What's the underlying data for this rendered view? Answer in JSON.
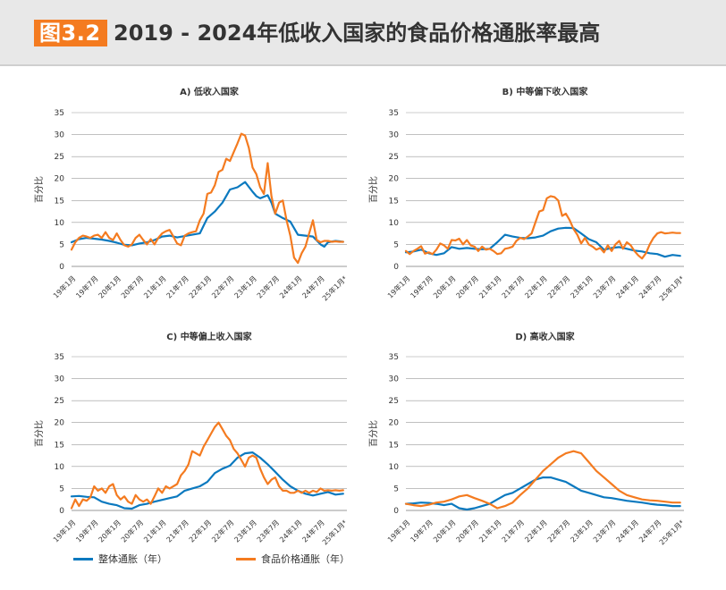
{
  "figure": {
    "label": "图3.2",
    "title": "2019 - 2024年低收入国家的食品价格通胀率最高"
  },
  "colors": {
    "headline": "#0b79bf",
    "food": "#f47b20",
    "grid": "#9a9a9a",
    "text": "#333333"
  },
  "legend": {
    "headline": "整体通胀（年）",
    "food": "食品价格通胀（年）"
  },
  "chart_data": [
    {
      "type": "line",
      "title": "A) 低收入国家",
      "ylabel": "百分比",
      "ylim": [
        0,
        35
      ],
      "yticks": [
        0,
        5,
        10,
        15,
        20,
        25,
        30,
        35
      ],
      "x_ticklabels": [
        "19年1月",
        "19年7月",
        "20年1月",
        "20年7月",
        "21年1月",
        "21年7月",
        "22年1月",
        "22年7月",
        "23年1月",
        "23年7月",
        "24年1月",
        "24年7月",
        "25年1月*"
      ],
      "x_range_months": [
        0,
        73
      ],
      "series": [
        {
          "name": "整体通胀（年）",
          "x": [
            0,
            2,
            4,
            6,
            8,
            10,
            12,
            14,
            16,
            18,
            20,
            22,
            24,
            26,
            28,
            30,
            32,
            34,
            36,
            38,
            39,
            40,
            42,
            44,
            46,
            48,
            49,
            50,
            52,
            53,
            54,
            56,
            58,
            60,
            62,
            64,
            66,
            67,
            68,
            70,
            72
          ],
          "y": [
            5.5,
            6.2,
            6.5,
            6.3,
            6.1,
            5.8,
            5.4,
            4.9,
            4.8,
            5.2,
            5.5,
            6.0,
            6.8,
            7.0,
            6.6,
            6.9,
            7.2,
            7.5,
            11.0,
            12.5,
            13.5,
            14.5,
            17.5,
            18.0,
            19.2,
            17.0,
            16.0,
            15.5,
            16.2,
            14.5,
            12.0,
            11.0,
            10.2,
            7.2,
            7.0,
            6.8,
            5.0,
            4.5,
            5.5,
            5.8,
            5.6
          ]
        },
        {
          "name": "食品价格通胀（年）",
          "x": [
            0,
            1,
            2,
            3,
            4,
            5,
            6,
            7,
            8,
            9,
            10,
            11,
            12,
            13,
            14,
            15,
            16,
            17,
            18,
            19,
            20,
            21,
            22,
            23,
            24,
            25,
            26,
            27,
            28,
            29,
            30,
            31,
            32,
            33,
            34,
            35,
            36,
            37,
            38,
            39,
            40,
            41,
            42,
            43,
            44,
            45,
            46,
            47,
            48,
            49,
            50,
            51,
            52,
            53,
            54,
            55,
            56,
            57,
            58,
            59,
            60,
            61,
            62,
            63,
            64,
            65,
            66,
            67,
            68,
            69,
            70,
            71,
            72
          ],
          "y": [
            3.8,
            5.5,
            6.5,
            7.0,
            6.8,
            6.5,
            7.0,
            7.2,
            6.5,
            7.8,
            6.5,
            6.0,
            7.5,
            6.0,
            4.8,
            4.5,
            5.0,
            6.5,
            7.2,
            6.0,
            5.0,
            6.2,
            5.0,
            6.5,
            7.5,
            8.0,
            8.3,
            6.8,
            5.2,
            4.8,
            7.0,
            7.5,
            7.8,
            8.0,
            10.5,
            12.0,
            16.5,
            16.8,
            18.5,
            21.5,
            22.0,
            24.5,
            24.0,
            26.0,
            28.0,
            30.2,
            29.8,
            27.0,
            22.5,
            21.0,
            18.0,
            16.5,
            23.5,
            16.0,
            12.0,
            14.5,
            15.0,
            10.5,
            7.0,
            2.0,
            0.8,
            3.0,
            4.5,
            7.5,
            10.5,
            6.0,
            5.5,
            5.8,
            5.8,
            5.6,
            5.7,
            5.6,
            5.6
          ]
        }
      ]
    },
    {
      "type": "line",
      "title": "B) 中等偏下收入国家",
      "ylabel": "百分比",
      "ylim": [
        0,
        35
      ],
      "yticks": [
        0,
        5,
        10,
        15,
        20,
        25,
        30,
        35
      ],
      "x_ticklabels": [
        "19年1月",
        "19年7月",
        "20年1月",
        "20年7月",
        "21年1月",
        "21年7月",
        "22年1月",
        "22年7月",
        "23年1月",
        "23年7月",
        "24年1月",
        "24年7月",
        "25年1月*"
      ],
      "x_range_months": [
        0,
        73
      ],
      "series": [
        {
          "name": "整体通胀（年）",
          "x": [
            0,
            2,
            4,
            6,
            8,
            10,
            12,
            14,
            16,
            18,
            20,
            22,
            24,
            26,
            28,
            30,
            32,
            34,
            36,
            38,
            40,
            42,
            44,
            46,
            48,
            50,
            52,
            54,
            56,
            58,
            60,
            62,
            64,
            66,
            68,
            70,
            72
          ],
          "y": [
            3.2,
            3.4,
            3.8,
            3.0,
            2.6,
            3.0,
            4.4,
            4.0,
            4.2,
            4.0,
            3.9,
            4.0,
            5.5,
            7.2,
            6.8,
            6.5,
            6.4,
            6.6,
            7.0,
            8.0,
            8.6,
            8.8,
            8.7,
            7.5,
            6.2,
            5.5,
            3.8,
            4.2,
            4.4,
            4.0,
            3.6,
            3.4,
            3.0,
            2.8,
            2.2,
            2.6,
            2.4
          ]
        },
        {
          "name": "食品价格通胀（年）",
          "x": [
            0,
            1,
            2,
            3,
            4,
            5,
            6,
            7,
            8,
            9,
            10,
            11,
            12,
            13,
            14,
            15,
            16,
            17,
            18,
            19,
            20,
            21,
            22,
            23,
            24,
            25,
            26,
            27,
            28,
            29,
            30,
            31,
            32,
            33,
            34,
            35,
            36,
            37,
            38,
            39,
            40,
            41,
            42,
            43,
            44,
            45,
            46,
            47,
            48,
            49,
            50,
            51,
            52,
            53,
            54,
            55,
            56,
            57,
            58,
            59,
            60,
            61,
            62,
            63,
            64,
            65,
            66,
            67,
            68,
            69,
            70,
            71,
            72
          ],
          "y": [
            3.5,
            2.8,
            3.5,
            4.0,
            4.6,
            2.9,
            3.2,
            2.8,
            3.8,
            5.2,
            4.8,
            4.0,
            6.0,
            5.9,
            6.3,
            5.0,
            6.0,
            4.8,
            4.5,
            3.5,
            4.5,
            3.8,
            4.0,
            3.5,
            2.8,
            3.0,
            4.0,
            4.2,
            4.5,
            5.8,
            6.5,
            6.2,
            6.8,
            7.5,
            10.0,
            12.5,
            12.8,
            15.5,
            16.0,
            15.8,
            15.0,
            11.5,
            12.0,
            10.5,
            8.5,
            7.2,
            5.2,
            6.5,
            5.0,
            4.5,
            3.8,
            4.2,
            3.2,
            4.8,
            3.5,
            5.0,
            5.8,
            4.0,
            5.5,
            4.8,
            3.5,
            2.5,
            1.8,
            3.0,
            5.0,
            6.5,
            7.5,
            7.8,
            7.5,
            7.6,
            7.7,
            7.6,
            7.6
          ]
        }
      ]
    },
    {
      "type": "line",
      "title": "C) 中等偏上收入国家",
      "ylabel": "百分比",
      "ylim": [
        0,
        35
      ],
      "yticks": [
        0,
        5,
        10,
        15,
        20,
        25,
        30,
        35
      ],
      "x_ticklabels": [
        "19年1月",
        "19年7月",
        "20年1月",
        "20年7月",
        "21年1月",
        "21年7月",
        "22年1月",
        "22年7月",
        "23年1月",
        "23年7月",
        "24年1月",
        "24年7月",
        "25年1月*"
      ],
      "x_range_months": [
        0,
        73
      ],
      "series": [
        {
          "name": "整体通胀（年）",
          "x": [
            0,
            2,
            4,
            6,
            8,
            10,
            12,
            14,
            16,
            18,
            20,
            22,
            24,
            26,
            28,
            30,
            32,
            34,
            36,
            38,
            40,
            42,
            44,
            46,
            48,
            50,
            52,
            54,
            56,
            58,
            60,
            62,
            64,
            66,
            68,
            70,
            72
          ],
          "y": [
            3.2,
            3.3,
            3.1,
            3.0,
            2.0,
            1.5,
            1.2,
            0.5,
            0.4,
            1.2,
            1.5,
            2.0,
            2.4,
            2.8,
            3.2,
            4.5,
            5.0,
            5.5,
            6.5,
            8.5,
            9.5,
            10.2,
            12.0,
            13.0,
            13.2,
            12.0,
            10.5,
            8.8,
            7.0,
            5.5,
            4.5,
            3.8,
            3.4,
            3.8,
            4.2,
            3.6,
            3.8
          ]
        },
        {
          "name": "食品价格通胀（年）",
          "x": [
            0,
            1,
            2,
            3,
            4,
            5,
            6,
            7,
            8,
            9,
            10,
            11,
            12,
            13,
            14,
            15,
            16,
            17,
            18,
            19,
            20,
            21,
            22,
            23,
            24,
            25,
            26,
            27,
            28,
            29,
            30,
            31,
            32,
            33,
            34,
            35,
            36,
            37,
            38,
            39,
            40,
            41,
            42,
            43,
            44,
            45,
            46,
            47,
            48,
            49,
            50,
            51,
            52,
            53,
            54,
            55,
            56,
            57,
            58,
            59,
            60,
            61,
            62,
            63,
            64,
            65,
            66,
            67,
            68,
            69,
            70,
            71,
            72
          ],
          "y": [
            0.5,
            2.5,
            1.0,
            2.5,
            2.2,
            3.0,
            5.5,
            4.5,
            5.0,
            4.0,
            5.5,
            6.0,
            3.5,
            2.5,
            3.2,
            2.0,
            1.5,
            3.5,
            2.5,
            2.0,
            2.5,
            1.5,
            3.2,
            5.0,
            4.0,
            5.5,
            5.0,
            5.5,
            6.0,
            8.0,
            9.0,
            10.5,
            13.5,
            13.0,
            12.5,
            14.5,
            16.0,
            17.5,
            19.0,
            20.0,
            18.5,
            17.0,
            16.0,
            14.0,
            13.0,
            11.5,
            10.0,
            12.0,
            12.5,
            12.0,
            9.5,
            7.5,
            6.0,
            7.0,
            7.5,
            5.5,
            4.5,
            4.5,
            4.0,
            4.0,
            4.5,
            4.0,
            4.5,
            4.0,
            4.5,
            4.2,
            5.0,
            4.5,
            4.6,
            4.5,
            4.6,
            4.5,
            4.6
          ]
        }
      ]
    },
    {
      "type": "line",
      "title": "D) 高收入国家",
      "ylabel": "百分比",
      "ylim": [
        0,
        35
      ],
      "yticks": [
        0,
        5,
        10,
        15,
        20,
        25,
        30,
        35
      ],
      "x_ticklabels": [
        "19年1月",
        "19年7月",
        "20年1月",
        "20年7月",
        "21年1月",
        "21年7月",
        "22年1月",
        "22年7月",
        "23年1月",
        "23年7月",
        "24年1月",
        "24年7月",
        "25年1月*"
      ],
      "x_range_months": [
        0,
        73
      ],
      "series": [
        {
          "name": "整体通胀（年）",
          "x": [
            0,
            2,
            4,
            6,
            8,
            10,
            12,
            14,
            16,
            18,
            20,
            22,
            24,
            26,
            28,
            30,
            32,
            34,
            36,
            38,
            40,
            42,
            44,
            46,
            48,
            50,
            52,
            54,
            56,
            58,
            60,
            62,
            64,
            66,
            68,
            70,
            72
          ],
          "y": [
            1.5,
            1.6,
            1.8,
            1.7,
            1.5,
            1.2,
            1.5,
            0.5,
            0.2,
            0.5,
            1.0,
            1.5,
            2.5,
            3.5,
            4.0,
            5.0,
            6.0,
            7.0,
            7.5,
            7.5,
            7.0,
            6.5,
            5.5,
            4.5,
            4.0,
            3.5,
            3.0,
            2.8,
            2.5,
            2.2,
            2.0,
            1.8,
            1.5,
            1.3,
            1.2,
            1.0,
            1.0
          ]
        },
        {
          "name": "食品价格通胀（年）",
          "x": [
            0,
            2,
            4,
            6,
            8,
            10,
            12,
            14,
            16,
            18,
            20,
            22,
            24,
            26,
            28,
            30,
            32,
            34,
            36,
            38,
            40,
            42,
            44,
            46,
            48,
            50,
            52,
            54,
            56,
            58,
            60,
            62,
            64,
            66,
            68,
            70,
            72
          ],
          "y": [
            1.5,
            1.2,
            1.0,
            1.3,
            1.8,
            2.0,
            2.5,
            3.2,
            3.5,
            2.8,
            2.2,
            1.5,
            0.5,
            1.0,
            1.8,
            3.5,
            5.0,
            7.0,
            9.0,
            10.5,
            12.0,
            13.0,
            13.5,
            13.0,
            11.0,
            9.0,
            7.5,
            6.0,
            4.5,
            3.5,
            3.0,
            2.5,
            2.3,
            2.2,
            2.0,
            1.8,
            1.8
          ]
        }
      ]
    }
  ]
}
